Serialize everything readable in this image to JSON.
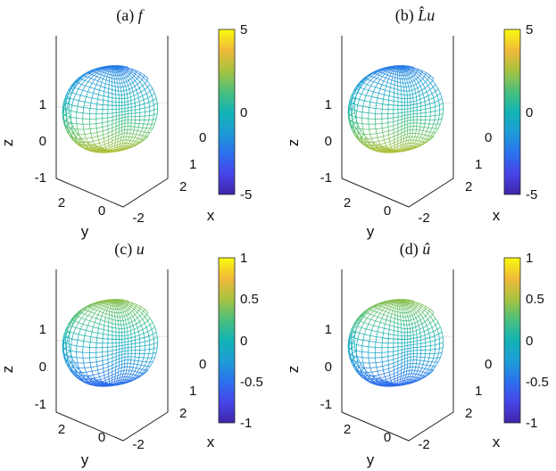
{
  "colormap": "parula",
  "chart_data": [
    {
      "type": "surface",
      "title_label": "(a)",
      "title_var": "f",
      "xlabel": "x",
      "ylabel": "y",
      "zlabel": "z",
      "x_ticks": [
        "0",
        "1",
        "2"
      ],
      "y_ticks": [
        "2",
        "0",
        "-2"
      ],
      "z_ticks": [
        "1",
        "0",
        "-1"
      ],
      "zlim": [
        -1.2,
        1.6
      ],
      "colorbar_range": [
        -5,
        5
      ],
      "colorbar_ticks": [
        "5",
        "0",
        "-5"
      ],
      "color_field": "f",
      "color_reverse": true
    },
    {
      "type": "surface",
      "title_label": "(b)",
      "title_var": "L̂u",
      "xlabel": "x",
      "ylabel": "y",
      "zlabel": "z",
      "x_ticks": [
        "0",
        "1",
        "2"
      ],
      "y_ticks": [
        "2",
        "0",
        "-2"
      ],
      "z_ticks": [
        "1",
        "0",
        "-1"
      ],
      "zlim": [
        -1.2,
        1.6
      ],
      "colorbar_range": [
        -5,
        5
      ],
      "colorbar_ticks": [
        "5",
        "0",
        "-5"
      ],
      "color_field": "Lu",
      "color_reverse": true
    },
    {
      "type": "surface",
      "title_label": "(c)",
      "title_var": "u",
      "xlabel": "x",
      "ylabel": "y",
      "zlabel": "z",
      "x_ticks": [
        "0",
        "1",
        "2"
      ],
      "y_ticks": [
        "2",
        "0",
        "-2"
      ],
      "z_ticks": [
        "1",
        "0",
        "-1"
      ],
      "zlim": [
        -1.2,
        1.6
      ],
      "colorbar_range": [
        -1,
        1
      ],
      "colorbar_ticks": [
        "1",
        "0.5",
        "0",
        "-0.5",
        "-1"
      ],
      "color_field": "u",
      "color_reverse": false
    },
    {
      "type": "surface",
      "title_label": "(d)",
      "title_var": "û",
      "xlabel": "x",
      "ylabel": "y",
      "zlabel": "z",
      "x_ticks": [
        "0",
        "1",
        "2"
      ],
      "y_ticks": [
        "2",
        "0",
        "-2"
      ],
      "z_ticks": [
        "1",
        "0",
        "-1"
      ],
      "zlim": [
        -1.2,
        1.6
      ],
      "colorbar_range": [
        -1,
        1
      ],
      "colorbar_ticks": [
        "1",
        "0.5",
        "0",
        "-0.5",
        "-1"
      ],
      "color_field": "u_hat",
      "color_reverse": false
    }
  ]
}
